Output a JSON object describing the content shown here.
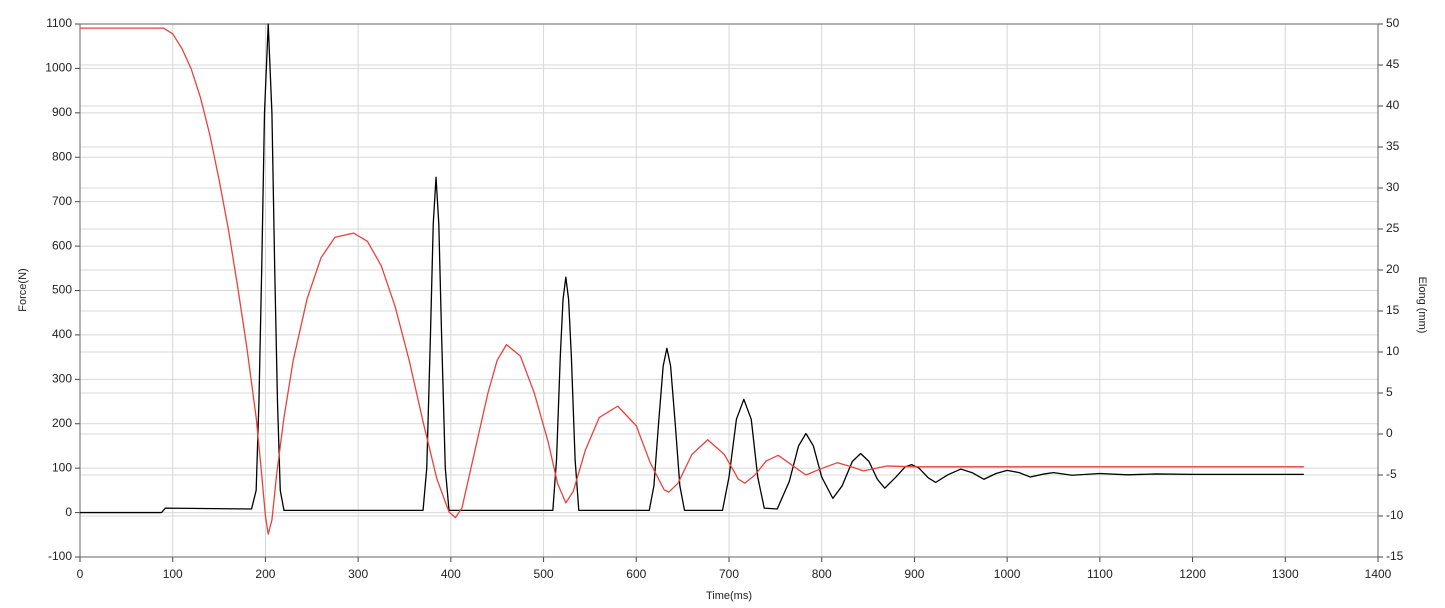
{
  "chart_data": {
    "type": "line",
    "x_label": "Time(ms)",
    "y_label": "Force(N)",
    "y2_label": "Elong (mm)",
    "xlim": [
      0,
      1400
    ],
    "xticks": [
      0,
      100,
      200,
      300,
      400,
      500,
      600,
      700,
      800,
      900,
      1000,
      1100,
      1200,
      1300,
      1400
    ],
    "ylim": [
      -100,
      1100
    ],
    "yticks": [
      -100,
      0,
      100,
      200,
      300,
      400,
      500,
      600,
      700,
      800,
      900,
      1000,
      1100
    ],
    "y2lim": [
      -15,
      50
    ],
    "y2ticks": [
      -15,
      -10,
      -5,
      0,
      5,
      10,
      15,
      20,
      25,
      30,
      35,
      40,
      45,
      50
    ],
    "grid": true,
    "series": [
      {
        "color": "#000000",
        "x": [
          0,
          88,
          92,
          185,
          190,
          193,
          196,
          199,
          203,
          207,
          210,
          213,
          216,
          220,
          370,
          374,
          378,
          381,
          384,
          387,
          390,
          394,
          398,
          510,
          514,
          518,
          521,
          524,
          527,
          530,
          534,
          538,
          614,
          619,
          624,
          629,
          633,
          637,
          642,
          647,
          652,
          693,
          700,
          708,
          716,
          724,
          731,
          738,
          752,
          765,
          775,
          783,
          791,
          800,
          812,
          822,
          833,
          842,
          851,
          860,
          868,
          880,
          890,
          897,
          905,
          915,
          923,
          936,
          950,
          962,
          975,
          988,
          1000,
          1013,
          1025,
          1040,
          1050,
          1070,
          1100,
          1130,
          1160,
          1200,
          1320
        ],
        "values": [
          0,
          0,
          10,
          8,
          50,
          250,
          550,
          900,
          1100,
          900,
          550,
          250,
          50,
          5,
          5,
          100,
          400,
          650,
          755,
          650,
          400,
          100,
          5,
          5,
          120,
          350,
          480,
          530,
          480,
          350,
          120,
          5,
          5,
          60,
          200,
          330,
          370,
          330,
          200,
          60,
          5,
          5,
          80,
          210,
          255,
          210,
          80,
          10,
          8,
          70,
          150,
          178,
          150,
          80,
          32,
          60,
          115,
          133,
          115,
          75,
          55,
          80,
          103,
          108,
          100,
          78,
          68,
          85,
          98,
          90,
          75,
          88,
          95,
          90,
          80,
          87,
          90,
          84,
          88,
          85,
          87,
          86,
          86
        ]
      },
      {
        "color": "#e8423f",
        "axis": "y2",
        "x": [
          0,
          90,
          100,
          110,
          120,
          130,
          140,
          150,
          160,
          170,
          180,
          190,
          196,
          200,
          203,
          207,
          212,
          220,
          230,
          245,
          260,
          275,
          295,
          310,
          325,
          340,
          355,
          370,
          385,
          398,
          405,
          412,
          420,
          430,
          440,
          450,
          460,
          475,
          490,
          505,
          515,
          524,
          532,
          545,
          560,
          580,
          600,
          615,
          630,
          635,
          645,
          660,
          677,
          695,
          710,
          717,
          728,
          740,
          753,
          768,
          783,
          800,
          817,
          832,
          845,
          870,
          900,
          950,
          1000,
          1320
        ],
        "values": [
          49.5,
          49.5,
          48.8,
          47,
          44.5,
          41,
          36.5,
          31,
          25,
          18,
          10.5,
          2,
          -5,
          -10,
          -12.2,
          -10.5,
          -5,
          2,
          9,
          16.5,
          21.5,
          24,
          24.5,
          23.5,
          20.5,
          15.5,
          9,
          1.5,
          -5.5,
          -9.5,
          -10.2,
          -9,
          -5,
          0,
          5,
          9,
          10.9,
          9.5,
          5,
          -1,
          -6,
          -8.4,
          -7,
          -2,
          2,
          3.4,
          1,
          -3.5,
          -6.8,
          -7.1,
          -6,
          -2.5,
          -0.7,
          -2.5,
          -5.5,
          -6,
          -5,
          -3.3,
          -2.6,
          -3.8,
          -5,
          -4.2,
          -3.5,
          -4,
          -4.5,
          -3.9,
          -4,
          -4,
          -4,
          -4
        ]
      }
    ]
  }
}
